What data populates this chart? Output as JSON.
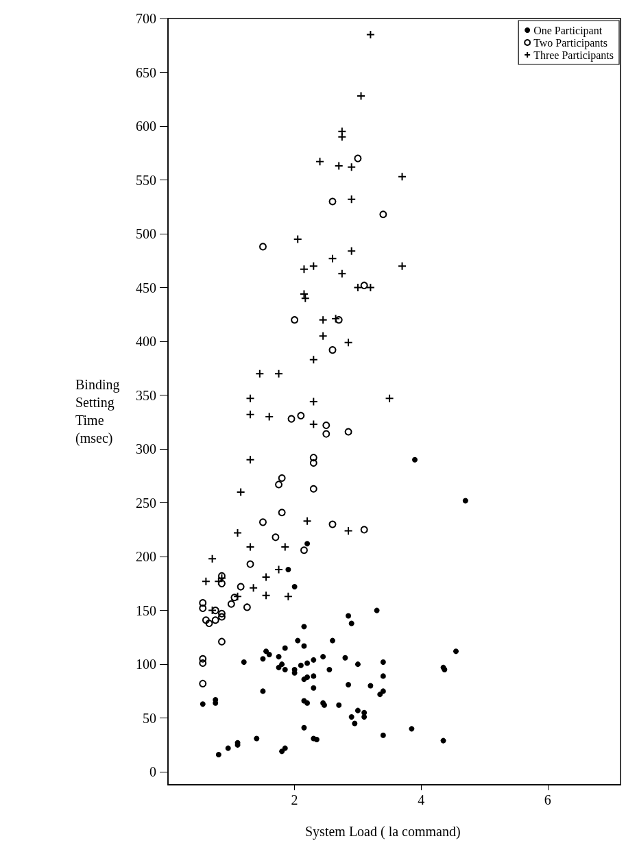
{
  "chart_data": {
    "type": "scatter",
    "xlabel": "System Load ( la command)",
    "ylabel": "Binding\nSetting\nTime\n(msec)",
    "xlim": [
      0,
      7.15
    ],
    "xticks": [
      2,
      4,
      6
    ],
    "ylim": [
      -12,
      700
    ],
    "yticks": [
      0,
      50,
      100,
      150,
      200,
      250,
      300,
      350,
      400,
      450,
      500,
      550,
      600,
      650,
      700
    ],
    "grid": false,
    "legend": "top right",
    "series": [
      {
        "name": "One Participant",
        "color": "#000000",
        "marker": "circle",
        "x": [
          3.9,
          4.7,
          2.2,
          1.9,
          2.0,
          2.15,
          3.3,
          2.85,
          2.9,
          2.05,
          2.6,
          2.15,
          1.55,
          1.85,
          1.6,
          1.5,
          1.75,
          1.8,
          1.75,
          1.85,
          2.0,
          2.1,
          2.2,
          2.3,
          2.45,
          2.8,
          3.0,
          3.4,
          4.55,
          4.35,
          4.37,
          1.2,
          2.0,
          2.15,
          2.2,
          2.3,
          2.3,
          2.55,
          2.85,
          3.2,
          3.4,
          3.4,
          3.35,
          1.5,
          2.15,
          2.2,
          2.45,
          2.47,
          2.7,
          0.55,
          0.75,
          0.75,
          2.9,
          2.95,
          3.0,
          3.1,
          3.1,
          2.15,
          3.85,
          3.4,
          4.35,
          1.4,
          2.3,
          2.35,
          1.1,
          1.1,
          0.95,
          0.8,
          1.8,
          1.85
        ],
        "values": [
          290,
          252,
          212,
          188,
          172,
          135,
          150,
          145,
          138,
          122,
          122,
          117,
          112,
          115,
          109,
          105,
          107,
          100,
          97,
          95,
          95,
          99,
          101,
          104,
          107,
          106,
          100,
          102,
          112,
          97,
          95,
          102,
          92,
          86,
          88,
          78,
          89,
          95,
          81,
          80,
          89,
          75,
          72,
          75,
          66,
          64,
          64,
          62,
          62,
          63,
          64,
          67,
          51,
          45,
          57,
          55,
          51,
          41,
          40,
          34,
          29,
          31,
          31,
          30,
          25,
          27,
          22,
          16,
          19,
          22
        ]
      },
      {
        "name": "Two Participants",
        "color": "#000000",
        "marker": "circle-open",
        "x": [
          3.0,
          2.6,
          3.4,
          1.5,
          3.1,
          2.0,
          2.7,
          2.6,
          1.95,
          2.1,
          2.5,
          2.5,
          2.85,
          2.3,
          2.3,
          1.8,
          1.75,
          2.3,
          1.8,
          1.5,
          2.6,
          3.1,
          1.7,
          2.15,
          1.3,
          0.85,
          0.85,
          1.15,
          1.05,
          1.25,
          1.0,
          0.55,
          0.55,
          0.75,
          0.85,
          0.6,
          0.65,
          0.75,
          0.85,
          0.85,
          0.55,
          0.55,
          0.55
        ],
        "values": [
          570,
          530,
          518,
          488,
          452,
          420,
          420,
          392,
          328,
          331,
          322,
          314,
          316,
          292,
          287,
          273,
          267,
          263,
          241,
          232,
          230,
          225,
          218,
          206,
          193,
          182,
          175,
          172,
          162,
          153,
          156,
          157,
          152,
          150,
          147,
          141,
          138,
          141,
          144,
          121,
          105,
          101,
          82
        ]
      },
      {
        "name": "Three Participants",
        "color": "#000000",
        "marker": "cross",
        "x": [
          3.2,
          3.05,
          2.75,
          2.75,
          2.4,
          2.7,
          2.9,
          3.7,
          2.9,
          2.05,
          2.6,
          2.9,
          2.3,
          2.15,
          2.75,
          3.7,
          3.0,
          3.2,
          2.15,
          2.17,
          2.45,
          2.65,
          2.45,
          2.85,
          2.3,
          1.45,
          1.75,
          1.3,
          2.3,
          3.5,
          1.3,
          1.6,
          2.3,
          1.3,
          1.15,
          2.2,
          2.85,
          1.1,
          1.3,
          1.85,
          0.7,
          1.75,
          0.6,
          0.8,
          0.85,
          1.55,
          1.35,
          1.1,
          1.55,
          1.9,
          0.7
        ],
        "values": [
          685,
          628,
          595,
          590,
          567,
          563,
          562,
          553,
          532,
          495,
          477,
          484,
          470,
          467,
          463,
          470,
          450,
          450,
          444,
          440,
          420,
          421,
          405,
          399,
          383,
          370,
          370,
          347,
          344,
          347,
          332,
          330,
          323,
          290,
          260,
          233,
          224,
          222,
          209,
          209,
          198,
          188,
          177,
          177,
          180,
          181,
          171,
          163,
          164,
          163,
          150
        ]
      }
    ]
  }
}
